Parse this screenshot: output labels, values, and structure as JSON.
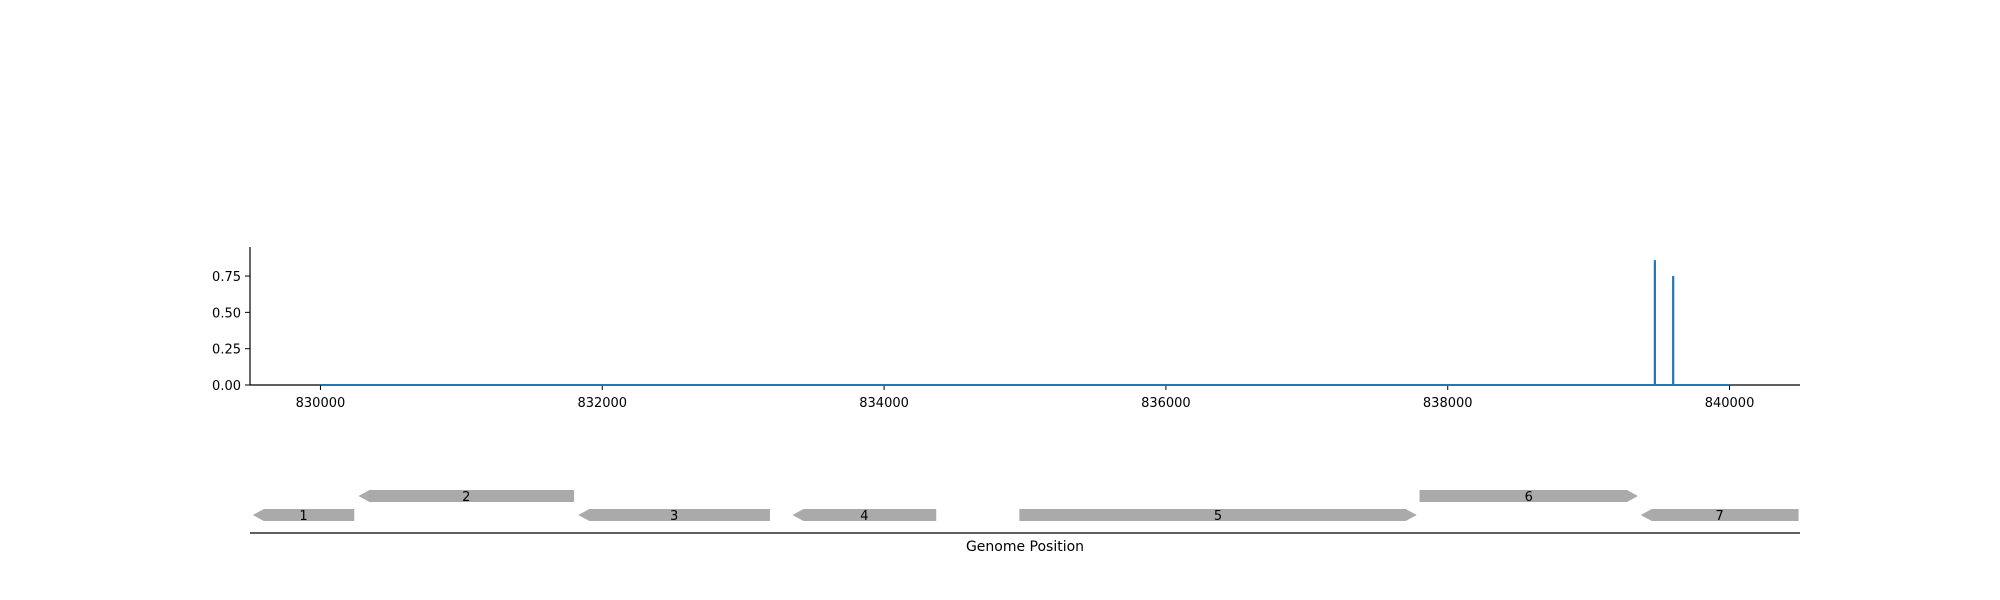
{
  "chart_data": {
    "type": "line",
    "title": "",
    "xlabel": "Genome Position",
    "ylabel": "",
    "xlim": [
      829500,
      840500
    ],
    "ylim": [
      0,
      0.95
    ],
    "grid": false,
    "x_ticks": [
      830000,
      832000,
      834000,
      836000,
      838000,
      840000
    ],
    "x_tick_labels": [
      "830000",
      "832000",
      "834000",
      "836000",
      "838000",
      "840000"
    ],
    "y_ticks": [
      0.0,
      0.25,
      0.5,
      0.75
    ],
    "y_tick_labels": [
      "0.00",
      "0.25",
      "0.50",
      "0.75"
    ],
    "series": [
      {
        "color": "#1f77b4",
        "x_range": [
          830000,
          840000
        ],
        "baseline": 0,
        "spikes": [
          {
            "x": 839470,
            "y": 0.86
          },
          {
            "x": 839600,
            "y": 0.75
          }
        ]
      }
    ],
    "genes": [
      {
        "label": "1",
        "start": 829520,
        "end": 830240,
        "strand": "-",
        "row": 0
      },
      {
        "label": "2",
        "start": 830270,
        "end": 831800,
        "strand": "-",
        "row": 1
      },
      {
        "label": "3",
        "start": 831830,
        "end": 833190,
        "strand": "-",
        "row": 0
      },
      {
        "label": "4",
        "start": 833350,
        "end": 834370,
        "strand": "-",
        "row": 0
      },
      {
        "label": "5",
        "start": 834960,
        "end": 837780,
        "strand": "+",
        "row": 0
      },
      {
        "label": "6",
        "start": 837800,
        "end": 839350,
        "strand": "+",
        "row": 1
      },
      {
        "label": "7",
        "start": 839370,
        "end": 840490,
        "strand": "-",
        "row": 0
      }
    ],
    "gene_color": "#aaaaaa"
  }
}
